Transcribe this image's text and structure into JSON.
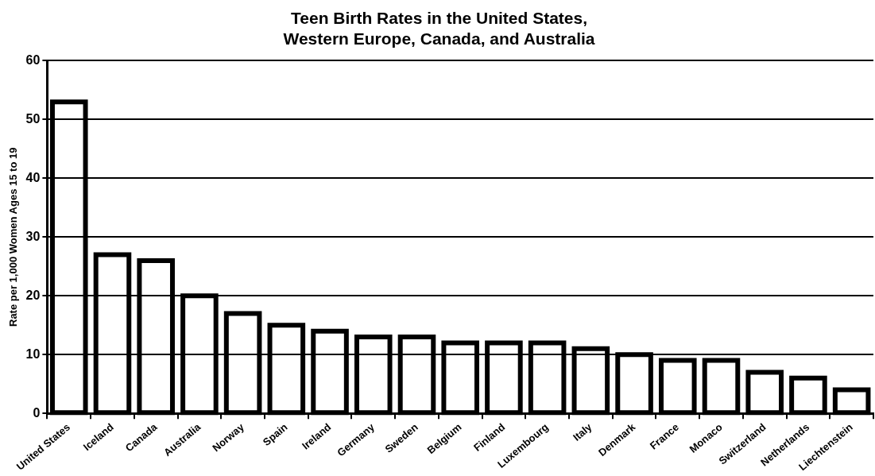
{
  "chart_data": {
    "type": "bar",
    "title": "Teen Birth Rates in the United States,\nWestern Europe, Canada, and Australia",
    "ylabel": "Rate per 1,000 Women Ages 15 to 19",
    "categories": [
      "United States",
      "Iceland",
      "Canada",
      "Australia",
      "Norway",
      "Spain",
      "Ireland",
      "Germany",
      "Sweden",
      "Belgium",
      "Finland",
      "Luxembourg",
      "Italy",
      "Denmark",
      "France",
      "Monaco",
      "Switzerland",
      "Netherlands",
      "Liechtenstein"
    ],
    "values": [
      53,
      27,
      26,
      20,
      17,
      15,
      14,
      13,
      13,
      12,
      12,
      12,
      11,
      10,
      9,
      9,
      7,
      6,
      4
    ],
    "color": "#000000",
    "ylim": [
      0,
      60
    ],
    "yticks": [
      0,
      10,
      20,
      30,
      40,
      50,
      60
    ],
    "grid": "y",
    "legend": false
  }
}
